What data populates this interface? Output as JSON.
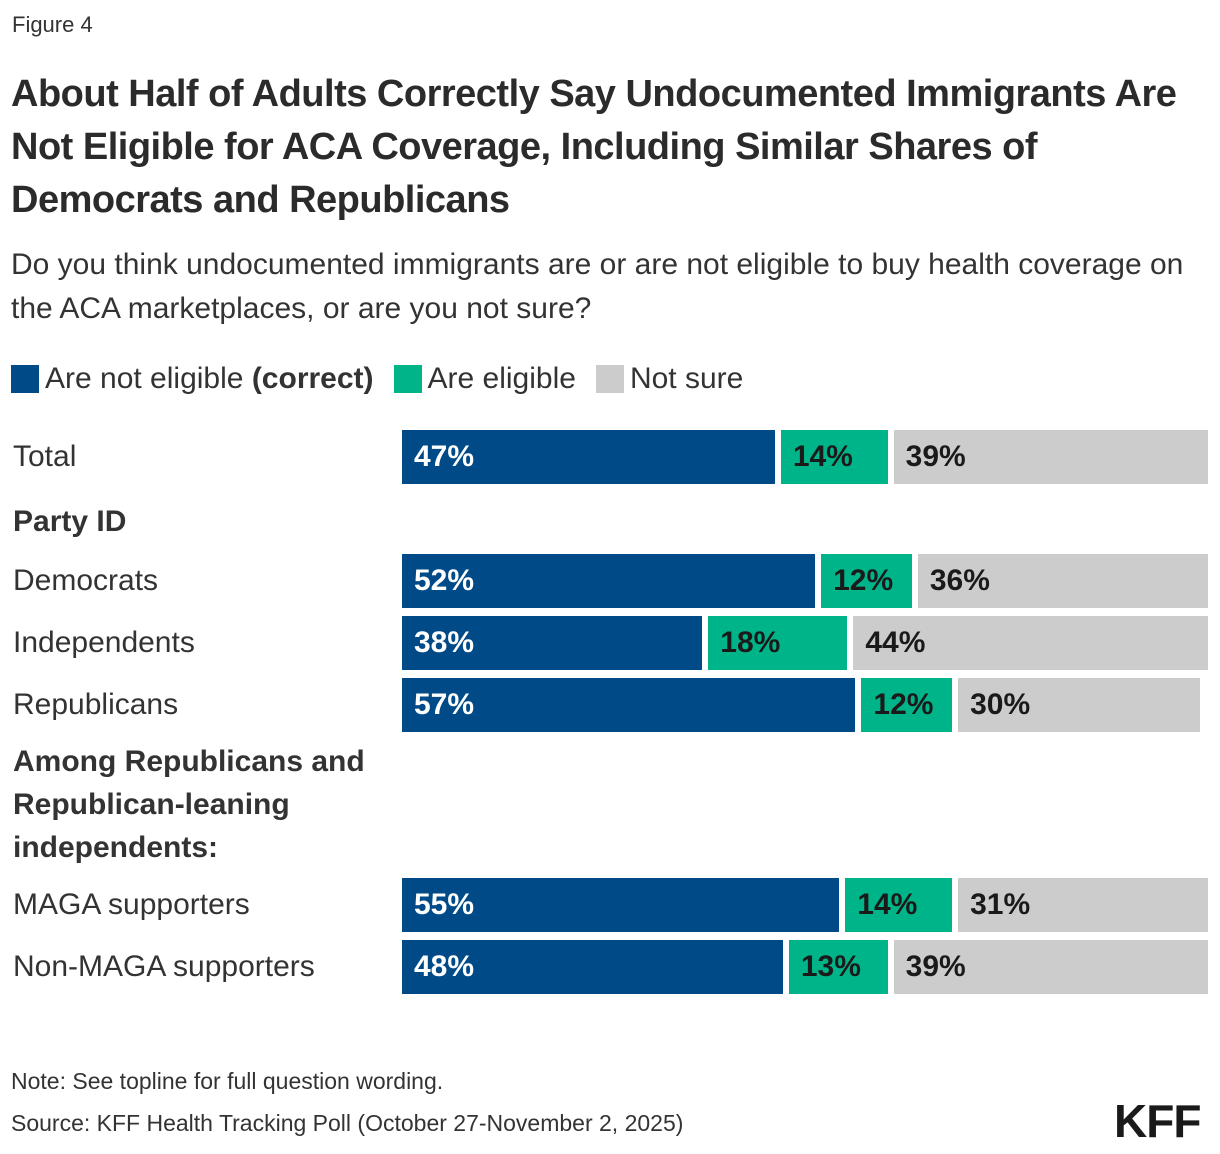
{
  "figure_label": "Figure 4",
  "chart_data": {
    "type": "bar",
    "orientation": "horizontal",
    "stacked": true,
    "title": "About Half of Adults Correctly Say Undocumented Immigrants Are Not Eligible for ACA Coverage, Including Similar Shares of Democrats and Republicans",
    "subtitle": "Do you think undocumented immigrants are or are not eligible to buy health coverage on the ACA marketplaces, or are you not sure?",
    "legend": {
      "placement": "top-left",
      "items": [
        {
          "label": "Are not eligible",
          "label_bold": "(correct)",
          "color": "#004a87"
        },
        {
          "label": "Are eligible",
          "color": "#00b48a"
        },
        {
          "label": "Not sure",
          "color": "#cccccc"
        }
      ]
    },
    "unit": "%",
    "xlim": [
      0,
      100
    ],
    "rows": [
      {
        "kind": "bar",
        "label": "Total",
        "values": [
          47,
          14,
          39
        ]
      },
      {
        "kind": "group",
        "label": "Party ID"
      },
      {
        "kind": "bar",
        "label": "Democrats",
        "values": [
          52,
          12,
          36
        ]
      },
      {
        "kind": "bar",
        "label": "Independents",
        "values": [
          38,
          18,
          44
        ]
      },
      {
        "kind": "bar",
        "label": "Republicans",
        "values": [
          57,
          12,
          30
        ]
      },
      {
        "kind": "group",
        "label": "Among Republicans and Republican-leaning independents:"
      },
      {
        "kind": "bar",
        "label": "MAGA supporters",
        "values": [
          55,
          14,
          31
        ]
      },
      {
        "kind": "bar",
        "label": "Non-MAGA supporters",
        "values": [
          48,
          13,
          39
        ]
      }
    ],
    "label_colors": [
      "#ffffff",
      "#1a1a1a",
      "#1a1a1a"
    ]
  },
  "footer": {
    "note": "Note: See topline for full question wording.",
    "source": "Source: KFF Health Tracking Poll (October 27-November 2, 2025)",
    "logo": "KFF"
  }
}
